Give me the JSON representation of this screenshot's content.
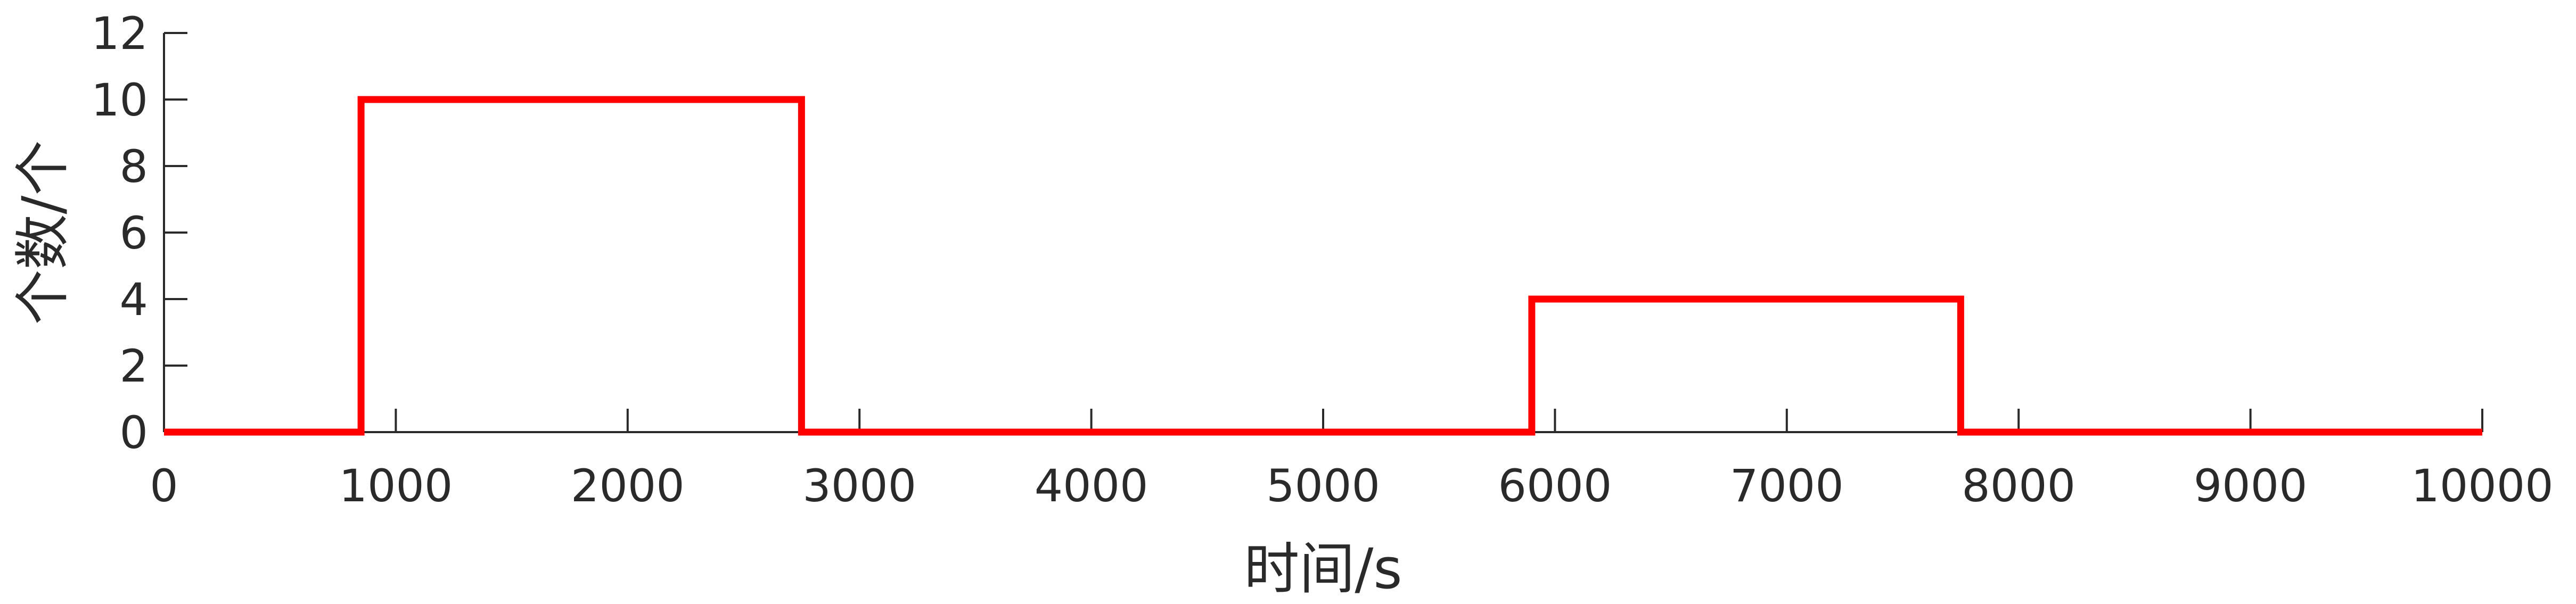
{
  "chart_data": {
    "type": "line",
    "title": "",
    "xlabel": "时间/s",
    "ylabel": "个数/个",
    "xlim": [
      0,
      10000
    ],
    "ylim": [
      0,
      12
    ],
    "xticks": [
      0,
      1000,
      2000,
      3000,
      4000,
      5000,
      6000,
      7000,
      8000,
      9000,
      10000
    ],
    "yticks": [
      0,
      2,
      4,
      6,
      8,
      10,
      12
    ],
    "grid": false,
    "series": [
      {
        "color": "#ff0000",
        "step": true,
        "points": [
          [
            0,
            0
          ],
          [
            850,
            0
          ],
          [
            850,
            10
          ],
          [
            2750,
            10
          ],
          [
            2750,
            0
          ],
          [
            5900,
            0
          ],
          [
            5900,
            4
          ],
          [
            7750,
            4
          ],
          [
            7750,
            0
          ],
          [
            10000,
            0
          ]
        ]
      }
    ]
  }
}
